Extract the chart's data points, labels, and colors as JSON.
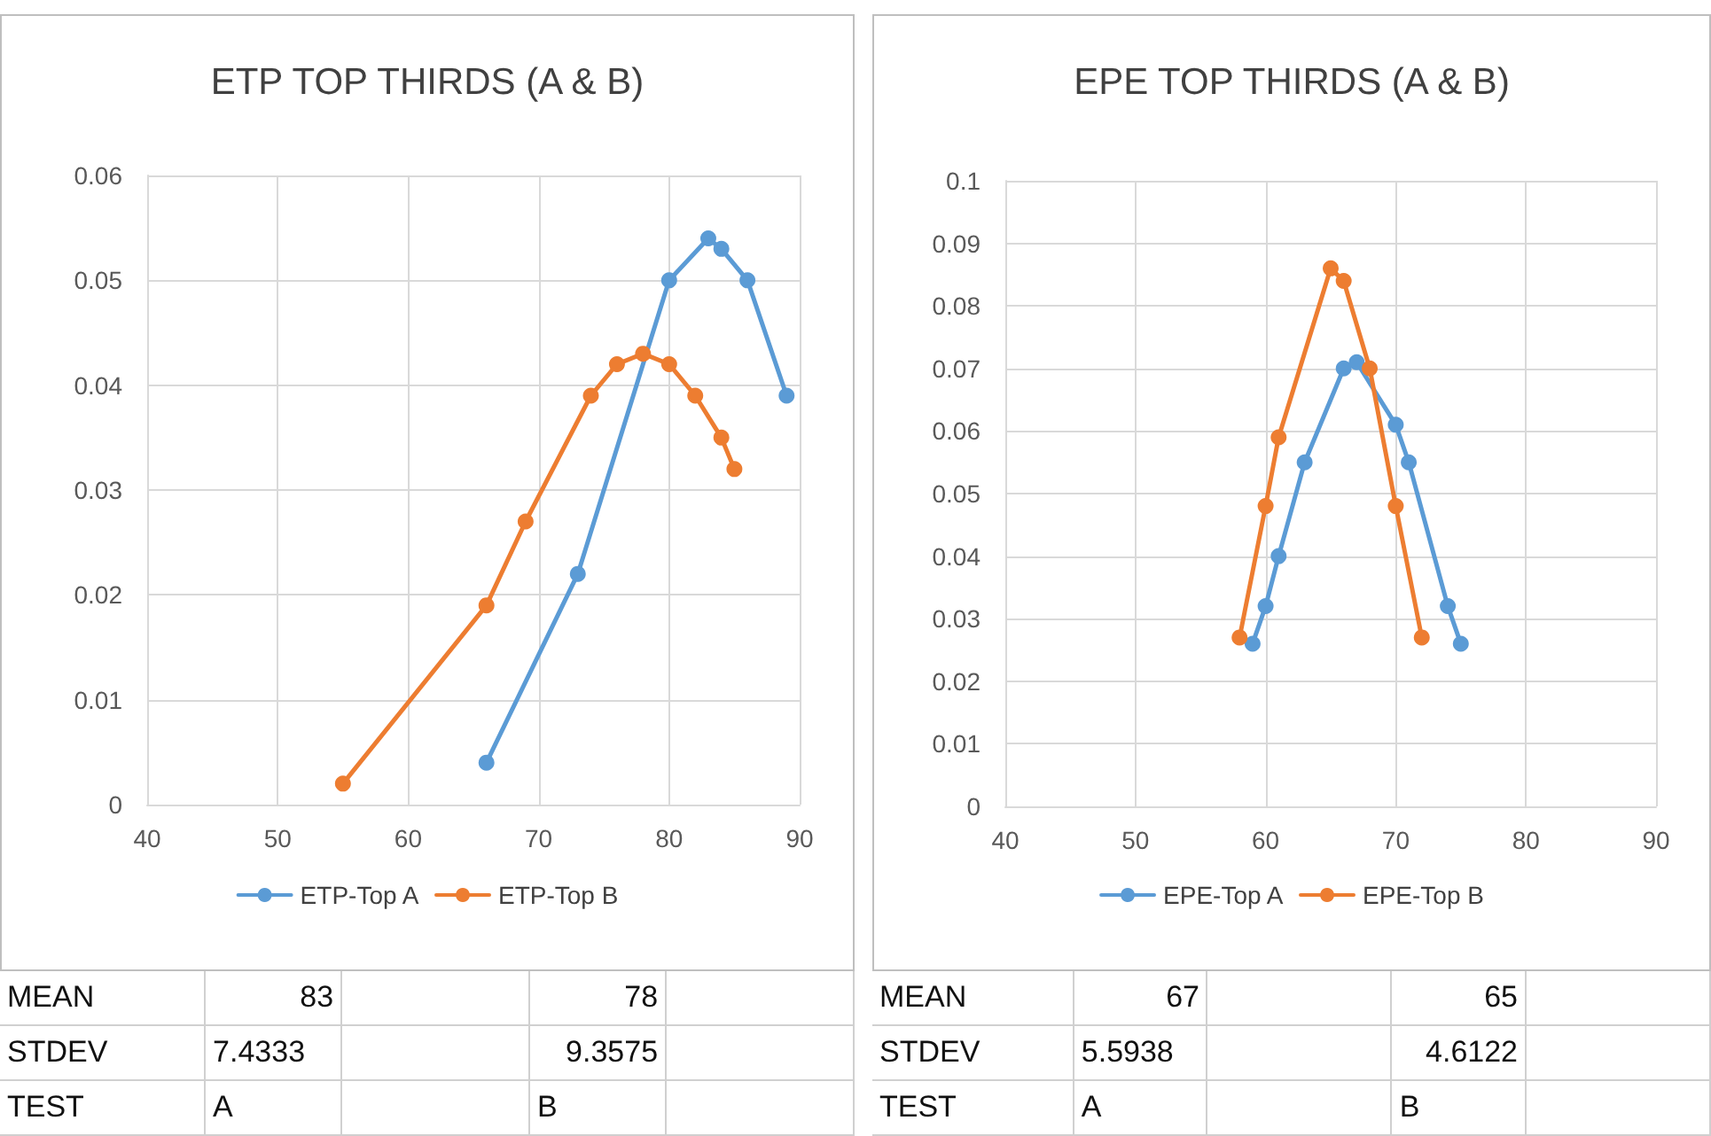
{
  "chart_data": [
    {
      "type": "line",
      "title": "ETP TOP THIRDS (A & B)",
      "xlim": [
        40,
        90
      ],
      "xticks": [
        40,
        50,
        60,
        70,
        80,
        90
      ],
      "ylim": [
        0,
        0.06
      ],
      "yticks": [
        0,
        0.01,
        0.02,
        0.03,
        0.04,
        0.05,
        0.06
      ],
      "grid": true,
      "legend": "bottom",
      "marker": "circle",
      "series": [
        {
          "name": "ETP-Top A",
          "color": "#5b9bd5",
          "x": [
            66,
            73,
            80,
            83,
            84,
            86,
            89
          ],
          "values": [
            0.004,
            0.022,
            0.05,
            0.054,
            0.053,
            0.05,
            0.039
          ]
        },
        {
          "name": "ETP-Top B",
          "color": "#ed7d31",
          "x": [
            55,
            66,
            69,
            74,
            76,
            78,
            80,
            82,
            84,
            85
          ],
          "values": [
            0.002,
            0.019,
            0.027,
            0.039,
            0.042,
            0.043,
            0.042,
            0.039,
            0.035,
            0.032
          ]
        }
      ],
      "annotations": [
        "MEAN",
        "83",
        "78",
        "STDEV",
        "7.4333",
        "9.3575",
        "TEST",
        "A",
        "B"
      ]
    },
    {
      "type": "line",
      "title": "EPE TOP THIRDS (A & B)",
      "xlim": [
        40,
        90
      ],
      "xticks": [
        40,
        50,
        60,
        70,
        80,
        90
      ],
      "ylim": [
        0,
        0.1
      ],
      "yticks": [
        0,
        0.01,
        0.02,
        0.03,
        0.04,
        0.05,
        0.06,
        0.07,
        0.08,
        0.09,
        0.1
      ],
      "grid": true,
      "legend": "bottom",
      "marker": "circle",
      "series": [
        {
          "name": "EPE-Top A",
          "color": "#5b9bd5",
          "x": [
            59,
            60,
            61,
            63,
            66,
            67,
            70,
            71,
            74,
            75
          ],
          "values": [
            0.026,
            0.032,
            0.04,
            0.055,
            0.07,
            0.071,
            0.061,
            0.055,
            0.032,
            0.026
          ]
        },
        {
          "name": "EPE-Top B",
          "color": "#ed7d31",
          "x": [
            58,
            60,
            61,
            65,
            66,
            68,
            70,
            72
          ],
          "values": [
            0.027,
            0.048,
            0.059,
            0.086,
            0.084,
            0.07,
            0.048,
            0.027
          ]
        }
      ],
      "annotations": [
        "MEAN",
        "67",
        "65",
        "STDEV",
        "5.5938",
        "4.6122",
        "TEST",
        "A",
        "B"
      ]
    }
  ]
}
